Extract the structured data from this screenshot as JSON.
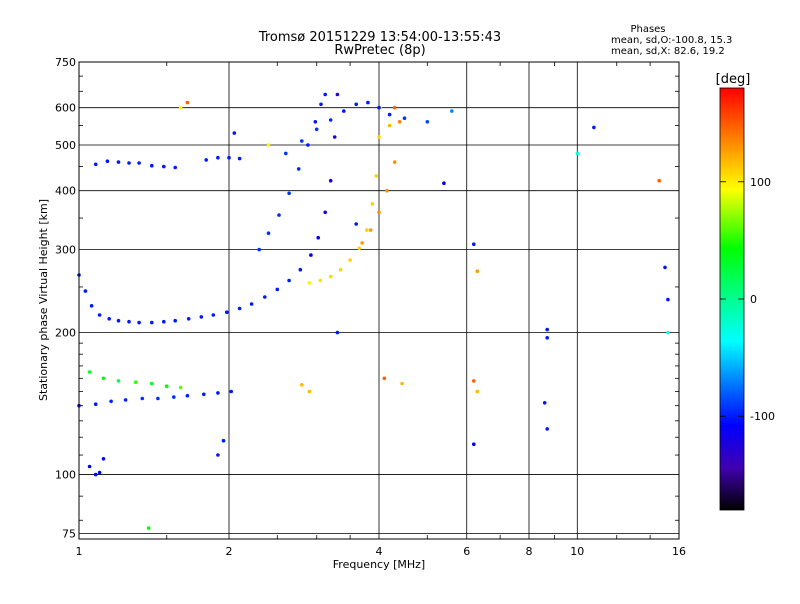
{
  "chart_data": {
    "type": "scatter",
    "title": "Tromsø 20151229 13:54:00-13:55:43",
    "subtitle": "RwPretec (8p)",
    "stats_box": {
      "heading": "Phases",
      "line1": "mean, sd,O:-100.8, 15.3",
      "line2": "mean, sd,X:  82.6, 19.2"
    },
    "xlabel": "Frequency [MHz]",
    "ylabel": "Stationary phase Virtual Height [km]",
    "x_scale": "log",
    "y_scale": "log",
    "xlim": [
      1,
      16
    ],
    "ylim": [
      73,
      750
    ],
    "x_ticks": [
      1,
      2,
      4,
      6,
      8,
      10,
      16
    ],
    "x_tick_labels": [
      "1",
      "2",
      "4",
      "6",
      "8",
      "10",
      "16"
    ],
    "y_ticks": [
      75,
      100,
      200,
      300,
      400,
      500,
      600,
      750
    ],
    "y_tick_labels": [
      "75",
      "100",
      "200",
      "300",
      "400",
      "500",
      "600",
      "750"
    ],
    "grid": true,
    "colorbar": {
      "label": "[deg]",
      "range": [
        -180,
        180
      ],
      "ticks": [
        100,
        0,
        -100
      ],
      "tick_labels": [
        "100",
        "0",
        "-100"
      ]
    },
    "series": [
      {
        "name": "",
        "x": [
          1.0,
          1.03,
          1.06,
          1.1,
          1.15,
          1.2,
          1.26,
          1.32,
          1.4,
          1.48,
          1.56,
          1.66,
          1.76,
          1.86,
          1.98,
          2.1,
          2.22,
          2.36,
          2.5,
          2.64,
          2.78,
          2.92,
          3.02,
          3.12,
          3.2,
          3.26,
          3.3
        ],
        "y": [
          265,
          245,
          228,
          218,
          214,
          212,
          211,
          210,
          210,
          211,
          212,
          214,
          216,
          218,
          221,
          225,
          230,
          238,
          247,
          258,
          272,
          292,
          318,
          360,
          420,
          520,
          640
        ],
        "phase": [
          -100,
          -100,
          -100,
          -100,
          -100,
          -100,
          -100,
          -100,
          -100,
          -100,
          -100,
          -100,
          -100,
          -100,
          -100,
          -100,
          -100,
          -100,
          -100,
          -100,
          -100,
          -110,
          -115,
          -120,
          -125,
          -130,
          -130
        ]
      },
      {
        "name": "",
        "x": [
          2.3,
          2.4,
          2.52,
          2.64,
          2.76,
          2.88,
          2.98,
          3.06,
          3.12
        ],
        "y": [
          300,
          325,
          355,
          395,
          445,
          500,
          560,
          610,
          640
        ],
        "phase": [
          -90,
          -90,
          -90,
          -90,
          -95,
          -100,
          -100,
          -100,
          -100
        ]
      },
      {
        "name": "",
        "x": [
          2.9,
          3.05,
          3.2,
          3.35,
          3.5,
          3.65,
          3.78,
          3.88,
          3.95,
          4.0,
          4.02
        ],
        "y": [
          255,
          258,
          263,
          272,
          285,
          302,
          330,
          375,
          430,
          520,
          600
        ],
        "phase": [
          100,
          105,
          108,
          110,
          110,
          112,
          112,
          112,
          110,
          110,
          110
        ]
      },
      {
        "name": "",
        "x": [
          3.7,
          3.85,
          4.0,
          4.15,
          4.3,
          4.4
        ],
        "y": [
          310,
          330,
          360,
          400,
          460,
          560
        ],
        "phase": [
          130,
          130,
          135,
          135,
          135,
          140
        ]
      },
      {
        "name": "",
        "x": [
          1.0,
          1.08,
          1.16,
          1.24,
          1.34,
          1.44,
          1.55,
          1.65,
          1.78,
          1.9,
          2.02
        ],
        "y": [
          140,
          141,
          143,
          144,
          145,
          145,
          146,
          147,
          148,
          149,
          150
        ],
        "phase": [
          -100,
          -100,
          -95,
          -95,
          -90,
          -90,
          -90,
          -95,
          -100,
          -100,
          -100
        ]
      },
      {
        "name": "",
        "x": [
          1.05,
          1.12,
          1.2,
          1.3,
          1.4,
          1.5,
          1.6
        ],
        "y": [
          165,
          160,
          158,
          157,
          156,
          154,
          153
        ],
        "phase": [
          30,
          40,
          20,
          50,
          30,
          40,
          60
        ]
      },
      {
        "name": "",
        "x": [
          1.08,
          1.14,
          1.2,
          1.26,
          1.32,
          1.4,
          1.48,
          1.56,
          1.8,
          1.9,
          2.0,
          2.1
        ],
        "y": [
          455,
          462,
          460,
          458,
          458,
          452,
          450,
          448,
          465,
          470,
          470,
          468
        ],
        "phase": [
          -100,
          -100,
          -100,
          -100,
          -100,
          -100,
          -100,
          -100,
          -100,
          -100,
          -100,
          -100
        ]
      },
      {
        "name": "",
        "x": [
          2.6,
          2.8,
          3.0,
          3.2,
          3.4,
          3.6,
          3.8,
          4.0,
          4.2,
          4.5,
          5.0,
          5.6
        ],
        "y": [
          480,
          510,
          540,
          565,
          590,
          610,
          615,
          600,
          580,
          570,
          560,
          590
        ],
        "phase": [
          -90,
          -90,
          -90,
          -95,
          -100,
          -100,
          -100,
          -100,
          -100,
          -90,
          -80,
          -60
        ]
      },
      {
        "name": "",
        "x": [
          5.4,
          6.2,
          6.3,
          8.7,
          8.7,
          10.0,
          10.8,
          14.6,
          15.0,
          15.2,
          15.2
        ],
        "y": [
          415,
          308,
          270,
          203,
          195,
          480,
          545,
          420,
          275,
          235,
          200
        ],
        "phase": [
          -110,
          -100,
          130,
          -100,
          -100,
          -20,
          -100,
          150,
          -100,
          -100,
          -30
        ]
      },
      {
        "name": "",
        "x": [
          2.8,
          2.9,
          4.1,
          4.45,
          6.2,
          6.3,
          8.6,
          8.7
        ],
        "y": [
          155,
          150,
          160,
          156,
          158,
          150,
          142,
          125
        ],
        "phase": [
          120,
          120,
          150,
          120,
          150,
          120,
          -100,
          -100
        ]
      },
      {
        "name": "",
        "x": [
          1.05,
          1.08,
          1.1,
          1.12,
          1.6,
          1.65,
          1.9,
          1.95,
          2.05,
          2.4,
          3.3,
          3.6,
          6.2,
          4.2,
          4.3
        ],
        "y": [
          104,
          100,
          101,
          108,
          600,
          615,
          110,
          118,
          530,
          500,
          200,
          340,
          116,
          550,
          600
        ],
        "phase": [
          -110,
          -110,
          -110,
          -110,
          100,
          150,
          -100,
          -100,
          -100,
          100,
          -100,
          -100,
          -110,
          120,
          150
        ]
      },
      {
        "name": "",
        "x": [
          1.38
        ],
        "y": [
          77
        ],
        "phase": [
          40
        ]
      }
    ]
  }
}
